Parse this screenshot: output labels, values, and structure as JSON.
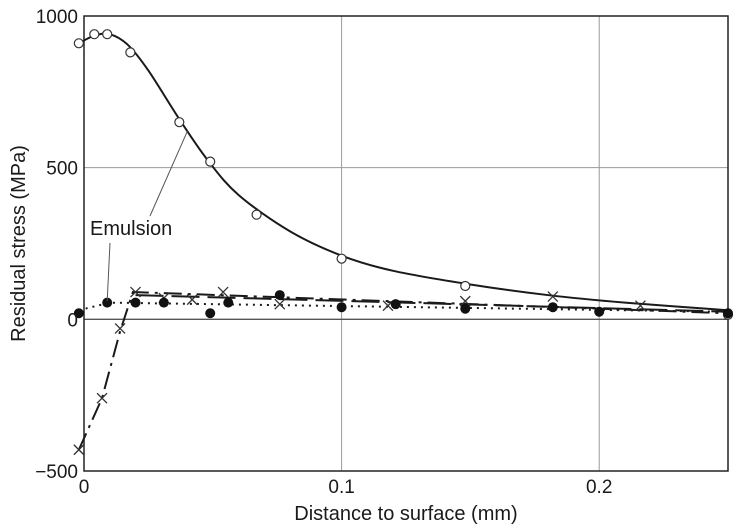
{
  "chart_data": {
    "type": "scatter",
    "title": "",
    "xlabel": "Distance to surface (mm)",
    "ylabel": "Residual stress (MPa)",
    "xlim": [
      0,
      0.25
    ],
    "ylim": [
      -500,
      1000
    ],
    "x_ticks": [
      0,
      0.1,
      0.2
    ],
    "x_tick_labels": [
      "0",
      "0.1",
      "0.2"
    ],
    "y_ticks": [
      -500,
      0,
      500,
      1000
    ],
    "y_tick_labels": [
      "−500",
      "0",
      "500",
      "1000"
    ],
    "grid": true,
    "annotation": "Emulsion",
    "series": [
      {
        "name": "Emulsion",
        "marker": "open-circle",
        "line": "solid",
        "points": [
          [
            -0.002,
            910
          ],
          [
            0.004,
            940
          ],
          [
            0.009,
            940
          ],
          [
            0.018,
            880
          ],
          [
            0.037,
            650
          ],
          [
            0.049,
            520
          ],
          [
            0.067,
            345
          ],
          [
            0.1,
            200
          ],
          [
            0.148,
            110
          ],
          [
            0.25,
            15
          ]
        ],
        "curve": [
          [
            -0.002,
            910
          ],
          [
            0.004,
            935
          ],
          [
            0.01,
            940
          ],
          [
            0.017,
            905
          ],
          [
            0.025,
            820
          ],
          [
            0.037,
            660
          ],
          [
            0.048,
            525
          ],
          [
            0.06,
            410
          ],
          [
            0.08,
            290
          ],
          [
            0.1,
            210
          ],
          [
            0.12,
            160
          ],
          [
            0.15,
            115
          ],
          [
            0.18,
            80
          ],
          [
            0.21,
            55
          ],
          [
            0.25,
            30
          ]
        ]
      },
      {
        "marker": "cross",
        "line": "dash-dot",
        "points": [
          [
            -0.002,
            -430
          ],
          [
            0.007,
            -260
          ],
          [
            0.014,
            -30
          ],
          [
            0.02,
            90
          ],
          [
            0.031,
            70
          ],
          [
            0.042,
            65
          ],
          [
            0.054,
            90
          ],
          [
            0.076,
            50
          ],
          [
            0.118,
            45
          ],
          [
            0.148,
            60
          ],
          [
            0.182,
            75
          ],
          [
            0.216,
            45
          ]
        ],
        "curve": [
          [
            -0.002,
            -430
          ],
          [
            0.007,
            -260
          ],
          [
            0.014,
            -40
          ],
          [
            0.019,
            90
          ],
          [
            0.25,
            20
          ]
        ]
      },
      {
        "marker": "filled-circle",
        "line": "dotted",
        "points": [
          [
            -0.002,
            20
          ],
          [
            0.009,
            55
          ],
          [
            0.02,
            55
          ],
          [
            0.031,
            55
          ],
          [
            0.049,
            20
          ],
          [
            0.056,
            55
          ],
          [
            0.076,
            80
          ],
          [
            0.1,
            40
          ],
          [
            0.121,
            50
          ],
          [
            0.148,
            35
          ],
          [
            0.182,
            40
          ],
          [
            0.2,
            25
          ],
          [
            0.25,
            20
          ]
        ],
        "curve": [
          [
            -0.002,
            30
          ],
          [
            0.01,
            55
          ],
          [
            0.25,
            25
          ]
        ]
      },
      {
        "line": "long-dash",
        "curve": [
          [
            0.02,
            80
          ],
          [
            0.25,
            25
          ]
        ]
      }
    ]
  }
}
